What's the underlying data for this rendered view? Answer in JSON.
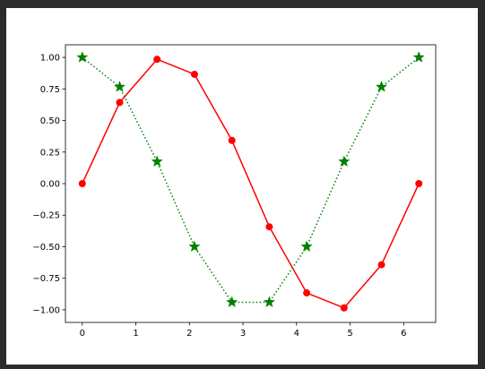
{
  "chart_data": {
    "type": "line",
    "title": "",
    "xlabel": "",
    "ylabel": "",
    "xlim": [
      -0.314,
      6.597
    ],
    "ylim": [
      -1.1,
      1.1
    ],
    "x_ticks": [
      0,
      1,
      2,
      3,
      4,
      5,
      6
    ],
    "x_tick_labels": [
      "0",
      "1",
      "2",
      "3",
      "4",
      "5",
      "6"
    ],
    "y_ticks": [
      1.0,
      0.75,
      0.5,
      0.25,
      0.0,
      -0.25,
      -0.5,
      -0.75,
      -1.0
    ],
    "y_tick_labels": [
      "1.00",
      "0.75",
      "0.50",
      "0.25",
      "0.00",
      "−0.25",
      "−0.50",
      "−0.75",
      "−1.00"
    ],
    "grid": false,
    "legend": null,
    "series": [
      {
        "line_style": "solid",
        "marker": "circle",
        "color": "#ff0000",
        "x": [
          0.0,
          0.698,
          1.396,
          2.094,
          2.793,
          3.491,
          4.189,
          4.887,
          5.585,
          6.283
        ],
        "y": [
          0.0,
          0.643,
          0.985,
          0.866,
          0.342,
          -0.342,
          -0.866,
          -0.985,
          -0.643,
          0.0
        ]
      },
      {
        "line_style": "dotted",
        "marker": "star",
        "color": "#008000",
        "x": [
          0.0,
          0.698,
          1.396,
          2.094,
          2.793,
          3.491,
          4.189,
          4.887,
          5.585,
          6.283
        ],
        "y": [
          1.0,
          0.766,
          0.174,
          -0.5,
          -0.94,
          -0.94,
          -0.5,
          0.174,
          0.766,
          1.0
        ]
      }
    ]
  }
}
